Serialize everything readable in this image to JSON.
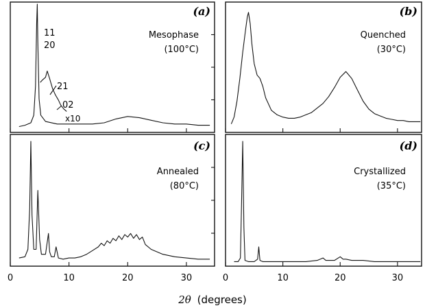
{
  "figure": {
    "xlabel_symbol": "2θ",
    "xlabel_units": "(degrees)"
  },
  "chart_data": [
    {
      "type": "line",
      "panel": "(a)",
      "label": "Mesophase",
      "temperature": "(100°C)",
      "xlim": [
        0,
        34
      ],
      "xticks": [
        0,
        10,
        20,
        30
      ],
      "xtick_labels": [
        "0",
        "10",
        "20",
        "30"
      ],
      "peak_labels": [
        {
          "text": "11",
          "x": 4.6
        },
        {
          "text": "20",
          "x": 4.6
        },
        {
          "text": "21",
          "x": 6.3
        },
        {
          "text": "02",
          "x": 8.2
        },
        {
          "text": "x10",
          "x": 9.0
        }
      ],
      "inset_scale": "x10",
      "series": [
        {
          "x": [
            1.5,
            2.5,
            3.5,
            4.0,
            4.3,
            4.5,
            4.6,
            4.7,
            4.9,
            5.2,
            6,
            8,
            10,
            12,
            14,
            16,
            18,
            20,
            22,
            24,
            26,
            28,
            30,
            32,
            34
          ],
          "y": [
            0.03,
            0.04,
            0.06,
            0.12,
            0.35,
            0.85,
            1.0,
            0.7,
            0.25,
            0.12,
            0.07,
            0.05,
            0.05,
            0.05,
            0.05,
            0.06,
            0.09,
            0.11,
            0.1,
            0.08,
            0.06,
            0.05,
            0.05,
            0.04,
            0.04
          ]
        },
        {
          "x": [
            5.1,
            5.5,
            6.0,
            6.3,
            6.7,
            7.2,
            7.7,
            8.2,
            8.6,
            9.1,
            9.6
          ],
          "y": [
            0.38,
            0.4,
            0.42,
            0.47,
            0.41,
            0.33,
            0.28,
            0.24,
            0.2,
            0.17,
            0.15
          ]
        }
      ]
    },
    {
      "type": "line",
      "panel": "(b)",
      "label": "Quenched",
      "temperature": "(30°C)",
      "xlim": [
        0,
        34
      ],
      "xticks": [
        0,
        10,
        20,
        30
      ],
      "series": [
        {
          "x": [
            1,
            1.5,
            2,
            2.5,
            3,
            3.5,
            3.8,
            4.0,
            4.3,
            4.6,
            5.0,
            5.5,
            6.0,
            6.5,
            7,
            8,
            9,
            10,
            11,
            12,
            13,
            14,
            15,
            16,
            17,
            18,
            19,
            20,
            21,
            22,
            23,
            24,
            25,
            26,
            27,
            28,
            29,
            30,
            31,
            32,
            34
          ],
          "y": [
            0.02,
            0.08,
            0.22,
            0.42,
            0.65,
            0.85,
            0.96,
            1.0,
            0.9,
            0.72,
            0.55,
            0.45,
            0.42,
            0.35,
            0.25,
            0.14,
            0.1,
            0.08,
            0.07,
            0.07,
            0.08,
            0.1,
            0.12,
            0.16,
            0.2,
            0.26,
            0.34,
            0.43,
            0.48,
            0.42,
            0.32,
            0.22,
            0.15,
            0.11,
            0.09,
            0.07,
            0.06,
            0.05,
            0.05,
            0.04,
            0.04
          ]
        }
      ]
    },
    {
      "type": "line",
      "panel": "(c)",
      "label": "Annealed",
      "temperature": "(80°C)",
      "xlim": [
        0,
        34
      ],
      "xticks": [
        0,
        10,
        20,
        30
      ],
      "xtick_labels": [
        "0",
        "10",
        "20",
        "30"
      ],
      "series": [
        {
          "x": [
            1.5,
            2.5,
            3.0,
            3.3,
            3.5,
            3.7,
            4.0,
            4.4,
            4.7,
            5.0,
            5.3,
            6.0,
            6.5,
            6.7,
            7.0,
            7.5,
            7.8,
            8.2,
            9,
            10,
            11,
            12,
            13,
            14,
            15,
            15.5,
            16,
            16.5,
            17,
            17.5,
            18,
            18.5,
            19,
            19.5,
            20,
            20.5,
            21,
            21.5,
            22,
            22.5,
            23,
            24,
            26,
            28,
            30,
            32,
            34
          ],
          "y": [
            0.05,
            0.06,
            0.12,
            0.45,
            1.0,
            0.4,
            0.12,
            0.12,
            0.6,
            0.2,
            0.08,
            0.08,
            0.25,
            0.1,
            0.06,
            0.06,
            0.14,
            0.05,
            0.04,
            0.05,
            0.05,
            0.06,
            0.08,
            0.11,
            0.14,
            0.17,
            0.15,
            0.19,
            0.17,
            0.21,
            0.19,
            0.23,
            0.2,
            0.24,
            0.22,
            0.25,
            0.21,
            0.24,
            0.2,
            0.22,
            0.16,
            0.12,
            0.08,
            0.06,
            0.05,
            0.04,
            0.04
          ]
        }
      ]
    },
    {
      "type": "line",
      "panel": "(d)",
      "label": "Crystallized",
      "temperature": "(35°C)",
      "xlim": [
        0,
        34
      ],
      "xticks": [
        0,
        10,
        20,
        30
      ],
      "series": [
        {
          "x": [
            1.5,
            2.2,
            2.6,
            2.8,
            3.0,
            3.2,
            3.4,
            4,
            5,
            5.6,
            5.8,
            6.0,
            6.5,
            8,
            10,
            12,
            14,
            16,
            17,
            17.5,
            18,
            19,
            20,
            20.5,
            21,
            22,
            24,
            26,
            28,
            30,
            32,
            34
          ],
          "y": [
            0.02,
            0.02,
            0.05,
            0.5,
            1.0,
            0.3,
            0.03,
            0.02,
            0.02,
            0.04,
            0.14,
            0.03,
            0.02,
            0.02,
            0.02,
            0.02,
            0.02,
            0.03,
            0.05,
            0.03,
            0.03,
            0.03,
            0.06,
            0.04,
            0.04,
            0.03,
            0.03,
            0.02,
            0.02,
            0.02,
            0.02,
            0.02
          ]
        }
      ]
    }
  ]
}
